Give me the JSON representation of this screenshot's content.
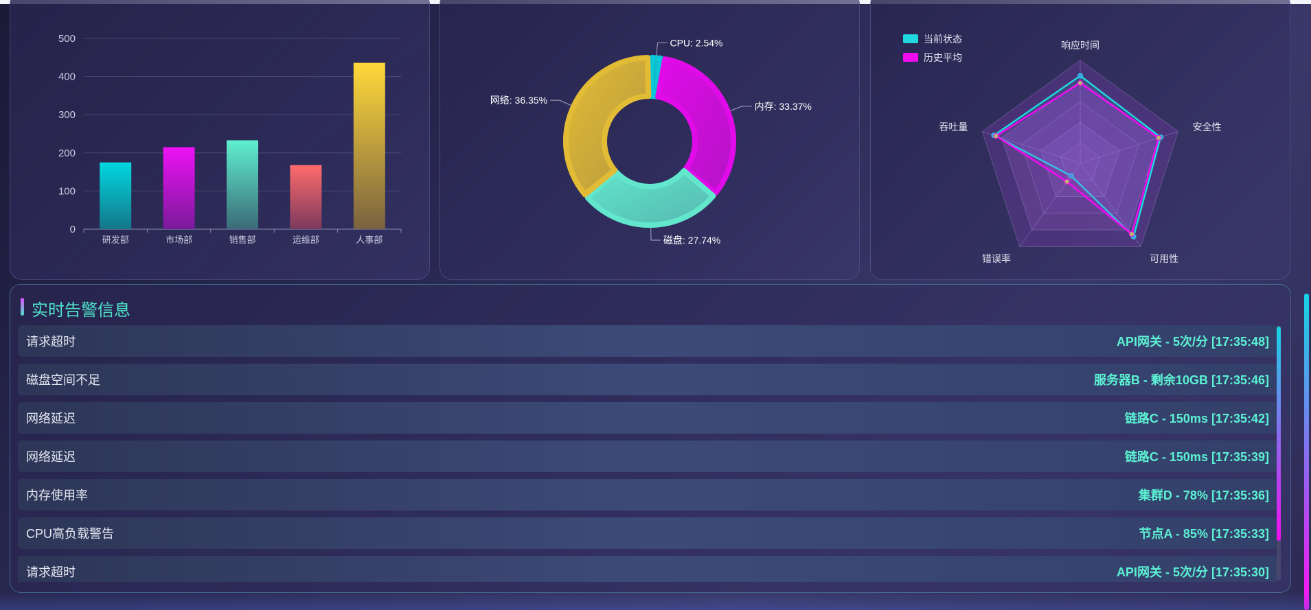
{
  "bar_chart": {
    "chart_data": {
      "type": "bar",
      "categories": [
        "研发部",
        "市场部",
        "销售部",
        "运维部",
        "人事部"
      ],
      "values": [
        175,
        215,
        233,
        168,
        436
      ],
      "ylim": [
        0,
        500
      ],
      "yticks": [
        0,
        100,
        200,
        300,
        400,
        500
      ],
      "colors": [
        [
          "#00d8e0",
          "#147789"
        ],
        [
          "#ee11f5",
          "#7a1a9a"
        ],
        [
          "#5ff0cf",
          "#3b6a78"
        ],
        [
          "#ff6b6b",
          "#7b3a5e"
        ],
        [
          "#ffd93a",
          "#7a6240"
        ]
      ]
    }
  },
  "pie_chart": {
    "chart_data": {
      "type": "pie",
      "labels": [
        "CPU",
        "内存",
        "磁盘",
        "网络"
      ],
      "values": [
        2.54,
        33.37,
        27.74,
        36.35
      ],
      "display_labels": [
        "CPU: 2.54%",
        "内存: 33.37%",
        "磁盘: 27.74%",
        "网络: 36.35%"
      ],
      "colors": [
        "#0bc8d6",
        "#e00be8",
        "#62e6cc",
        "#e3bc36"
      ]
    }
  },
  "radar_chart": {
    "chart_data": {
      "type": "radar",
      "indicators": [
        "响应时间",
        "安全性",
        "可用性",
        "错误率",
        "吞吐量"
      ],
      "max": 100,
      "series": [
        {
          "name": "当前状态",
          "values": [
            85,
            82,
            88,
            15,
            88
          ],
          "color": "#1fd8e0"
        },
        {
          "name": "历史平均",
          "values": [
            78,
            80,
            85,
            22,
            86
          ],
          "color": "#f10cf0"
        }
      ],
      "legend_position": "top-left"
    }
  },
  "alerts": {
    "title": "实时告警信息",
    "items": [
      {
        "message": "请求超时",
        "detail": "API网关 - 5次/分 [17:35:48]"
      },
      {
        "message": "磁盘空间不足",
        "detail": "服务器B - 剩余10GB [17:35:46]"
      },
      {
        "message": "网络延迟",
        "detail": "链路C - 150ms [17:35:42]"
      },
      {
        "message": "网络延迟",
        "detail": "链路C - 150ms [17:35:39]"
      },
      {
        "message": "内存使用率",
        "detail": "集群D - 78% [17:35:36]"
      },
      {
        "message": "CPU高负载警告",
        "detail": "节点A - 85% [17:35:33]"
      },
      {
        "message": "请求超时",
        "detail": "API网关 - 5次/分 [17:35:30]"
      }
    ]
  }
}
